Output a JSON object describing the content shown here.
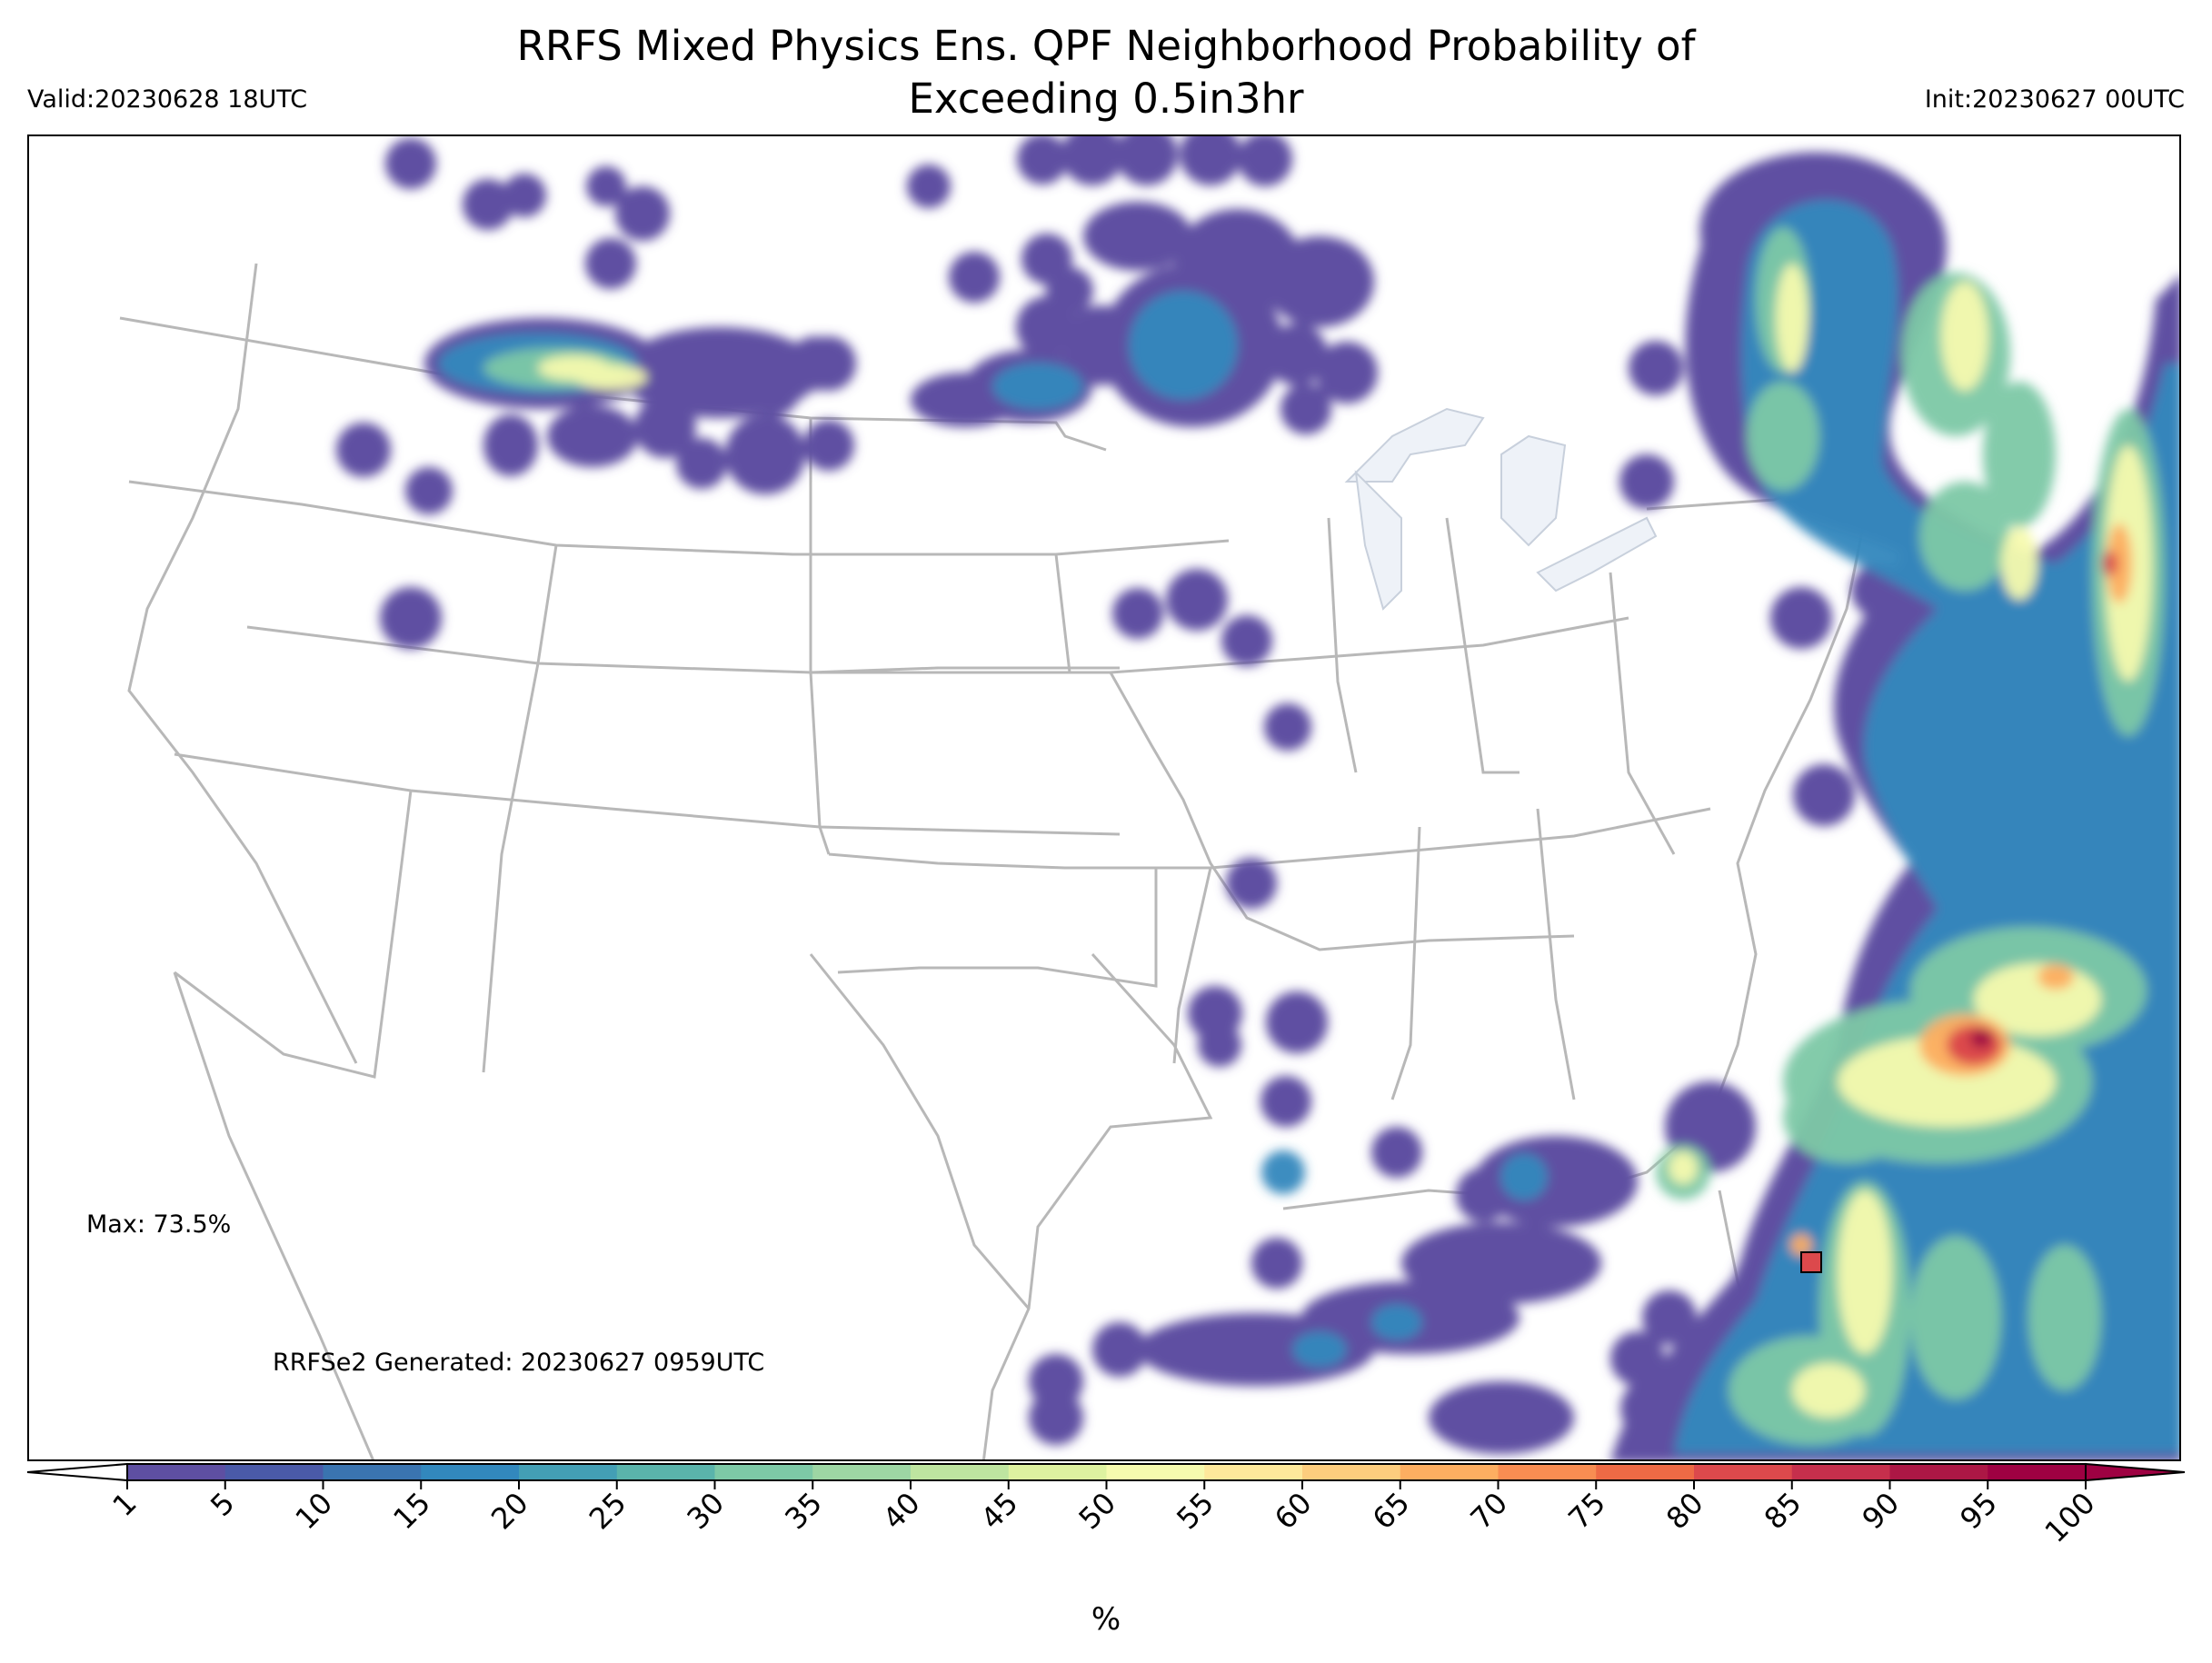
{
  "title_line1": "RRFS Mixed Physics Ens. QPF Neighborhood Probability of",
  "title_line2": "Exceeding 0.5in3hr",
  "valid": "Valid:20230628 18UTC",
  "init": "Init:20230627 00UTC",
  "max_label": "Max: 73.5%",
  "generated": "RRFSe2 Generated: 20230627 0959UTC",
  "colorbar": {
    "unit": "%",
    "ticks": [
      "1",
      "5",
      "10",
      "15",
      "20",
      "25",
      "30",
      "35",
      "40",
      "45",
      "50",
      "55",
      "60",
      "65",
      "70",
      "75",
      "80",
      "85",
      "90",
      "95",
      "100"
    ],
    "colors": [
      "#5e4fa2",
      "#4a5aa8",
      "#3a74b0",
      "#3288bd",
      "#439fb5",
      "#5ab4ab",
      "#7dc9a6",
      "#9dd6a4",
      "#bee5a0",
      "#def2a0",
      "#f6faae",
      "#fee89b",
      "#fdcd7e",
      "#fdae61",
      "#f88d52",
      "#ee6a45",
      "#dc494c",
      "#c62f4c",
      "#ac1745",
      "#9e0142"
    ],
    "extend_low_color": "#ffffff",
    "extend_high_color": "#9e0142"
  },
  "map_style": {
    "border_color": "#b8b8b8",
    "lake_color": "#eef2f8"
  }
}
